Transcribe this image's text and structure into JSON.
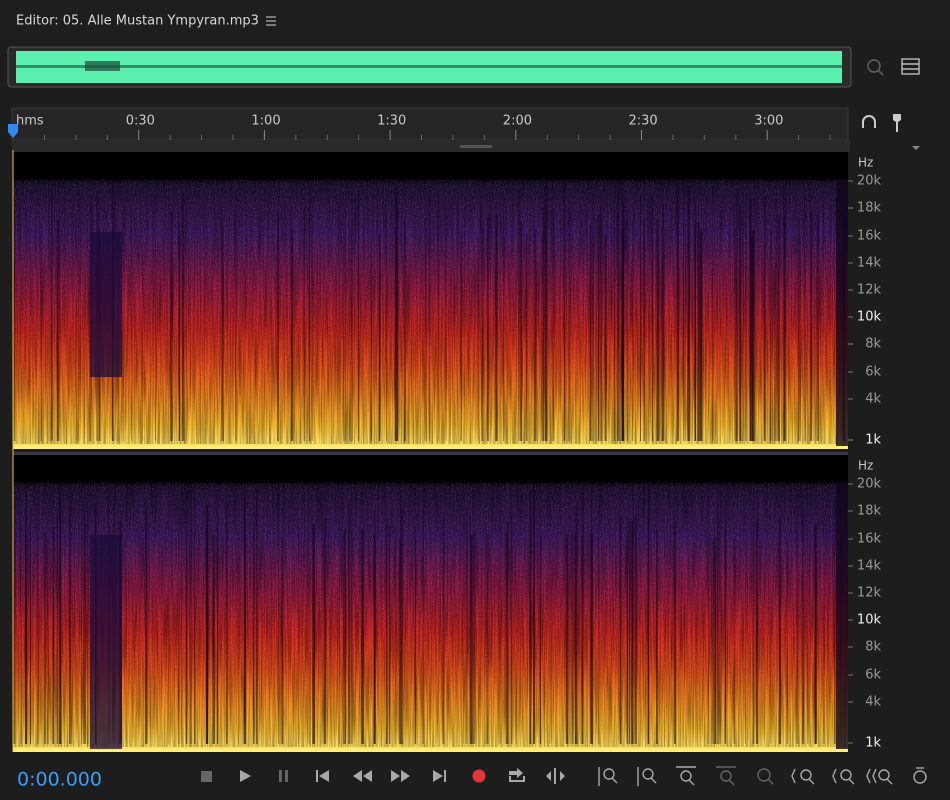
{
  "editor": {
    "title": "Editor: 05. Alle Mustan Ympyran.mp3"
  },
  "ruler": {
    "labels": [
      "hms",
      "0:30",
      "1:00",
      "1:30",
      "2:00",
      "2:30",
      "3:00"
    ]
  },
  "channels": [
    {
      "unit": "Hz",
      "labels": [
        "20k",
        "18k",
        "16k",
        "14k",
        "12k",
        "10k",
        "8k",
        "6k",
        "4k",
        "1k"
      ]
    },
    {
      "unit": "Hz",
      "labels": [
        "20k",
        "18k",
        "16k",
        "14k",
        "12k",
        "10k",
        "8k",
        "6k",
        "4k",
        "1k"
      ]
    }
  ],
  "transport": {
    "time": "0:00.000"
  }
}
